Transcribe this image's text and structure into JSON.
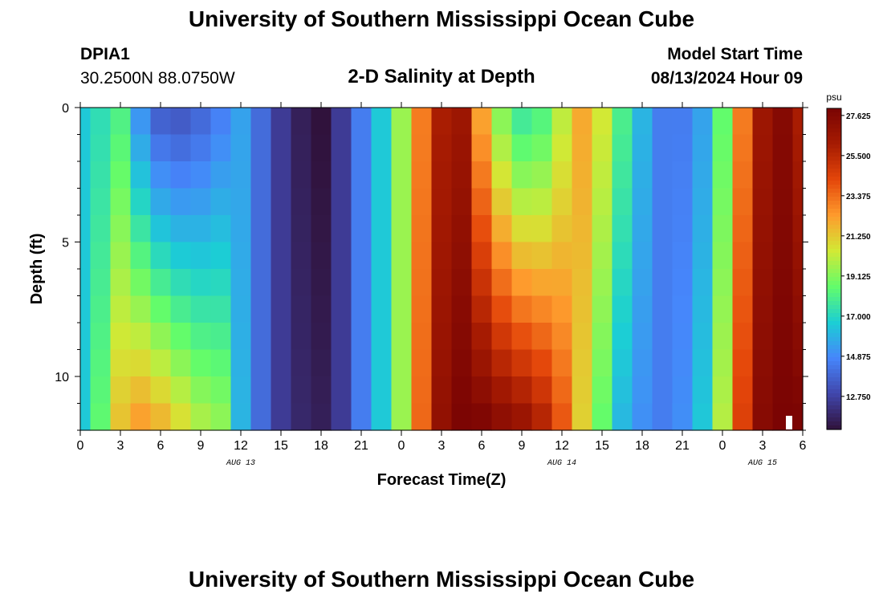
{
  "header": {
    "title": "University of Southern Mississippi Ocean Cube",
    "station_id": "DPIA1",
    "station_coords": "30.2500N  88.0750W",
    "subtitle": "2-D Salinity at Depth",
    "model_start_label": "Model Start Time",
    "model_start_value": "08/13/2024 Hour 09"
  },
  "footer": {
    "title": "University of Southern Mississippi Ocean Cube"
  },
  "chart_data": {
    "type": "heatmap",
    "title": "2-D Salinity at Depth",
    "xlabel": "Forecast Time(Z)",
    "ylabel": "Depth (ft)",
    "x_unit": "hours after 08/13 00Z",
    "x_range": [
      0,
      54
    ],
    "x_ticks": [
      0,
      3,
      6,
      9,
      12,
      15,
      18,
      21,
      24,
      27,
      30,
      33,
      36,
      39,
      42,
      45,
      48,
      51,
      54
    ],
    "x_tick_labels": [
      "0",
      "3",
      "6",
      "9",
      "12",
      "15",
      "18",
      "21",
      "0",
      "3",
      "6",
      "9",
      "12",
      "15",
      "18",
      "21",
      "0",
      "3",
      "6"
    ],
    "date_labels": [
      {
        "x": 12,
        "text": "AUG 13"
      },
      {
        "x": 36,
        "text": "AUG 14"
      },
      {
        "x": 51,
        "text": "AUG 15"
      }
    ],
    "y_range": [
      0,
      12
    ],
    "y_ticks": [
      0,
      5,
      10
    ],
    "y_reversed": true,
    "colorbar": {
      "unit": "psu",
      "min": 11.0,
      "max": 28.0,
      "tick_values": [
        27.625,
        25.5,
        23.375,
        21.25,
        19.125,
        17.0,
        14.875,
        12.75
      ],
      "tick_labels": [
        "27.625",
        "25.500",
        "23.375",
        "21.250",
        "19.125",
        "17.000",
        "14.875",
        "12.750"
      ],
      "colors": [
        "#30123b",
        "#4146ac",
        "#4686fb",
        "#1bcfd4",
        "#62fc6b",
        "#d2e935",
        "#fe9b2d",
        "#e4460a",
        "#a61b02",
        "#7a0403"
      ]
    },
    "x_columns_hours": [
      0,
      1.5,
      3,
      4.5,
      6,
      7.5,
      9,
      10.5,
      12,
      13.5,
      15,
      16.5,
      18,
      19.5,
      21,
      22.5,
      24,
      25.5,
      27,
      28.5,
      30,
      31.5,
      33,
      34.5,
      36,
      37.5,
      39,
      40.5,
      42,
      43.5,
      45,
      46.5,
      48,
      49.5,
      51,
      52.5,
      54
    ],
    "surface_salinity_psu": [
      16.5,
      17.2,
      18.0,
      15.0,
      13.5,
      13.3,
      13.8,
      14.5,
      15.5,
      14.0,
      12.5,
      11.5,
      11.0,
      12.5,
      14.5,
      16.5,
      19.5,
      23.0,
      26.0,
      26.5,
      22.0,
      19.0,
      17.5,
      18.0,
      20.0,
      22.0,
      20.5,
      18.0,
      16.0,
      14.5,
      14.5,
      15.5,
      18.5,
      23.0,
      26.5,
      27.5,
      26.0
    ],
    "bottom_salinity_psu": [
      16.5,
      18.5,
      21.5,
      22.5,
      22.0,
      21.0,
      20.0,
      19.5,
      16.0,
      14.0,
      12.5,
      11.8,
      11.5,
      12.5,
      14.5,
      16.5,
      19.5,
      23.5,
      27.0,
      28.0,
      28.0,
      27.5,
      27.0,
      26.0,
      24.0,
      21.0,
      18.5,
      16.0,
      15.0,
      14.5,
      15.0,
      16.5,
      20.0,
      24.5,
      27.5,
      28.0,
      28.0
    ]
  }
}
